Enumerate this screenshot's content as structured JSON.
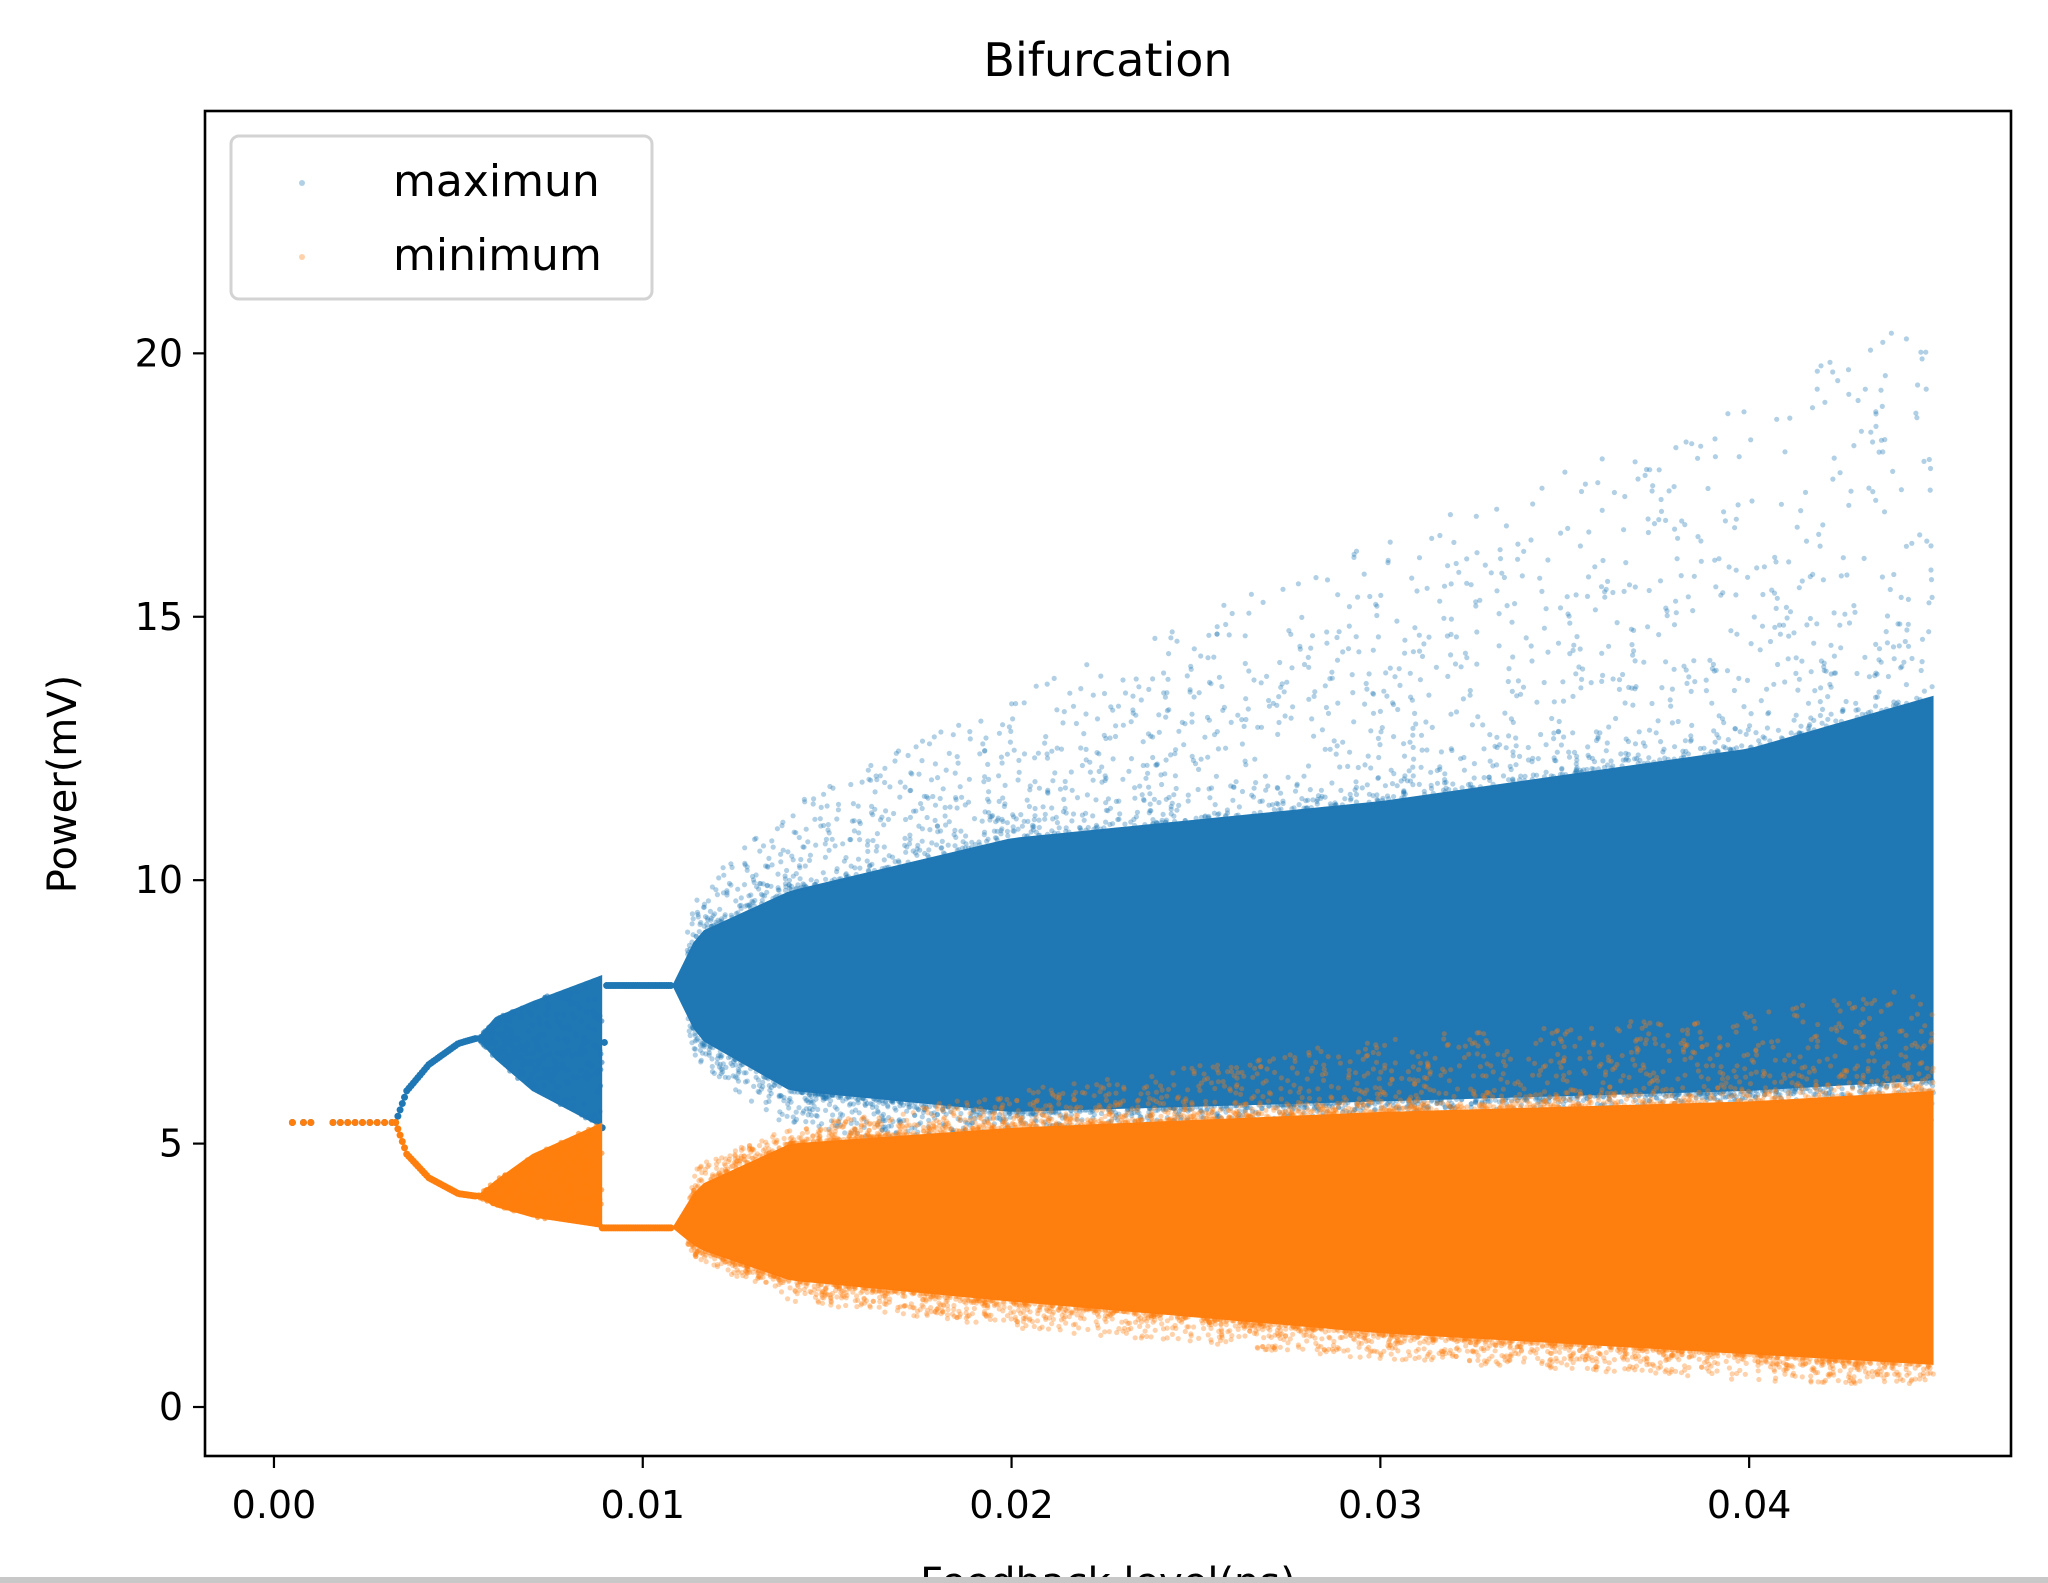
{
  "chart_data": {
    "type": "scatter",
    "title": "Bifurcation",
    "xlabel": "Feedback level(ns)",
    "ylabel": "Power(mV)",
    "xlim": [
      -0.00187,
      0.0471
    ],
    "ylim": [
      -0.93,
      24.6
    ],
    "xticks": [
      0.0,
      0.01,
      0.02,
      0.03,
      0.04
    ],
    "xtick_labels": [
      "0.00",
      "0.01",
      "0.02",
      "0.03",
      "0.04"
    ],
    "yticks": [
      0,
      5,
      10,
      15,
      20
    ],
    "ytick_labels": [
      "0",
      "5",
      "10",
      "15",
      "20"
    ],
    "grid": false,
    "legend": {
      "placement": "top-left",
      "entries": [
        "maximun",
        "minimum"
      ]
    },
    "series": [
      {
        "name": "maximun",
        "color": "#1f77b4",
        "envelope_columns": [
          "x",
          "core_low",
          "core_high",
          "tail_low",
          "tail_high"
        ],
        "envelope": [
          [
            0.0005,
            5.4,
            5.4,
            5.4,
            5.4
          ],
          [
            0.0033,
            5.4,
            5.4,
            5.4,
            5.4
          ],
          [
            0.0036,
            6.0,
            6.0,
            6.0,
            6.0
          ],
          [
            0.0042,
            6.5,
            6.5,
            6.5,
            6.5
          ],
          [
            0.005,
            6.9,
            6.9,
            6.9,
            6.9
          ],
          [
            0.0055,
            7.0,
            7.0,
            7.0,
            7.0
          ],
          [
            0.006,
            6.6,
            7.4,
            6.6,
            7.4
          ],
          [
            0.007,
            6.0,
            7.7,
            6.0,
            7.7
          ],
          [
            0.0089,
            5.3,
            8.2,
            5.3,
            8.2
          ],
          [
            0.009,
            8.0,
            8.0,
            8.0,
            8.0
          ],
          [
            0.0108,
            8.0,
            8.0,
            8.0,
            8.0
          ],
          [
            0.0115,
            7.0,
            9.0,
            6.5,
            9.8
          ],
          [
            0.014,
            6.0,
            9.8,
            5.3,
            11.5
          ],
          [
            0.02,
            5.6,
            10.8,
            4.8,
            13.5
          ],
          [
            0.03,
            5.8,
            11.5,
            4.8,
            16.5
          ],
          [
            0.04,
            6.0,
            12.5,
            5.0,
            19.0
          ],
          [
            0.045,
            6.2,
            13.5,
            5.2,
            21.0
          ]
        ]
      },
      {
        "name": "minimum",
        "color": "#ff7f0e",
        "envelope_columns": [
          "x",
          "core_low",
          "core_high",
          "tail_low",
          "tail_high"
        ],
        "envelope": [
          [
            0.0005,
            5.4,
            5.4,
            5.4,
            5.4
          ],
          [
            0.0033,
            5.4,
            5.4,
            5.4,
            5.4
          ],
          [
            0.0036,
            4.8,
            4.8,
            4.8,
            4.8
          ],
          [
            0.0042,
            4.35,
            4.35,
            4.35,
            4.35
          ],
          [
            0.005,
            4.05,
            4.05,
            4.05,
            4.05
          ],
          [
            0.0055,
            4.0,
            4.0,
            4.0,
            4.0
          ],
          [
            0.006,
            3.8,
            4.3,
            3.8,
            4.3
          ],
          [
            0.007,
            3.6,
            4.8,
            3.6,
            4.8
          ],
          [
            0.0089,
            3.4,
            5.4,
            3.4,
            5.4
          ],
          [
            0.009,
            3.4,
            3.4,
            3.4,
            3.4
          ],
          [
            0.0108,
            3.4,
            3.4,
            3.4,
            3.4
          ],
          [
            0.0115,
            3.0,
            4.2,
            2.8,
            4.6
          ],
          [
            0.014,
            2.4,
            5.0,
            2.0,
            5.3
          ],
          [
            0.02,
            2.0,
            5.3,
            1.5,
            6.0
          ],
          [
            0.03,
            1.4,
            5.6,
            0.9,
            7.0
          ],
          [
            0.04,
            1.0,
            5.8,
            0.5,
            7.5
          ],
          [
            0.045,
            0.8,
            6.0,
            0.4,
            8.0
          ]
        ]
      }
    ]
  }
}
